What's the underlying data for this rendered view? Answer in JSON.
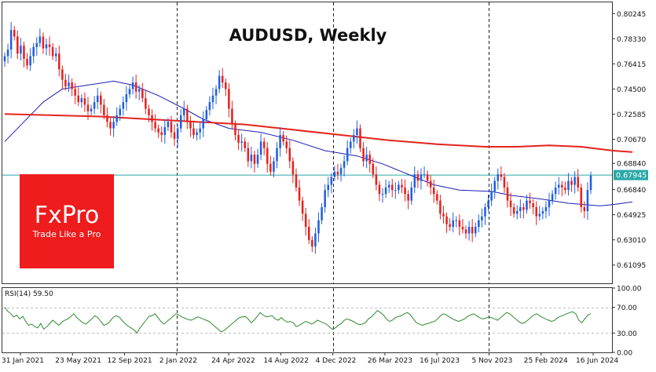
{
  "title": "AUDUSD, Weekly",
  "logo": {
    "name": "FxPro",
    "tagline": "Trade Like a Pro"
  },
  "colors": {
    "up": "#1f5fe0",
    "down": "#e8201c",
    "ma_short": "#1d1db8",
    "ma_long": "#e4231d",
    "rsi": "#2e8b2e",
    "last_price_line": "#2aa7a7",
    "last_price_label_bg": "#2aa7a7",
    "logo_bg": "#ee1c1c"
  },
  "chart_data": [
    {
      "type": "candlestick",
      "title": "AUDUSD, Weekly",
      "y_ticks": [
        "0.80245",
        "0.78330",
        "0.76415",
        "0.74500",
        "0.72585",
        "0.70670",
        "0.68840",
        "0.66840",
        "0.64925",
        "0.63010",
        "0.61095"
      ],
      "ylim": [
        0.597,
        0.811
      ],
      "last_price": "0.67945",
      "x_ticks": [
        "31 Jan 2021",
        "23 May 2021",
        "12 Sep 2021",
        "2 Jan 2022",
        "24 Apr 2022",
        "14 Aug 2022",
        "4 Dec 2022",
        "26 Mar 2023",
        "16 Jul 2023",
        "5 Nov 2023",
        "25 Feb 2024",
        "16 Jun 2024"
      ],
      "period_separators": [
        "2 Jan 2022",
        "4 Dec 2022",
        "5 Nov 2023"
      ],
      "closes": [
        0.77,
        0.775,
        0.79,
        0.785,
        0.772,
        0.778,
        0.768,
        0.763,
        0.77,
        0.777,
        0.78,
        0.785,
        0.776,
        0.779,
        0.777,
        0.77,
        0.772,
        0.76,
        0.752,
        0.747,
        0.75,
        0.745,
        0.74,
        0.735,
        0.738,
        0.733,
        0.728,
        0.73,
        0.735,
        0.74,
        0.733,
        0.725,
        0.72,
        0.715,
        0.72,
        0.725,
        0.73,
        0.735,
        0.741,
        0.745,
        0.75,
        0.743,
        0.745,
        0.738,
        0.73,
        0.725,
        0.72,
        0.715,
        0.712,
        0.71,
        0.716,
        0.72,
        0.712,
        0.707,
        0.715,
        0.725,
        0.73,
        0.72,
        0.715,
        0.71,
        0.712,
        0.715,
        0.722,
        0.729,
        0.735,
        0.74,
        0.745,
        0.755,
        0.75,
        0.745,
        0.73,
        0.718,
        0.71,
        0.704,
        0.705,
        0.7,
        0.69,
        0.695,
        0.688,
        0.695,
        0.705,
        0.7,
        0.688,
        0.682,
        0.69,
        0.7,
        0.71,
        0.705,
        0.7,
        0.69,
        0.68,
        0.67,
        0.66,
        0.65,
        0.64,
        0.63,
        0.625,
        0.635,
        0.645,
        0.655,
        0.668,
        0.672,
        0.678,
        0.682,
        0.68,
        0.685,
        0.69,
        0.7,
        0.705,
        0.71,
        0.715,
        0.7,
        0.69,
        0.695,
        0.688,
        0.68,
        0.672,
        0.665,
        0.665,
        0.67,
        0.672,
        0.668,
        0.668,
        0.672,
        0.67,
        0.665,
        0.66,
        0.67,
        0.68,
        0.675,
        0.68,
        0.68,
        0.675,
        0.67,
        0.665,
        0.66,
        0.65,
        0.648,
        0.642,
        0.64,
        0.645,
        0.645,
        0.64,
        0.638,
        0.635,
        0.64,
        0.635,
        0.64,
        0.645,
        0.648,
        0.655,
        0.66,
        0.667,
        0.675,
        0.68,
        0.678,
        0.67,
        0.66,
        0.655,
        0.65,
        0.652,
        0.655,
        0.653,
        0.66,
        0.658,
        0.655,
        0.648,
        0.65,
        0.652,
        0.655,
        0.66,
        0.665,
        0.67,
        0.672,
        0.67,
        0.668,
        0.675,
        0.672,
        0.678,
        0.67,
        0.655,
        0.652,
        0.668,
        0.679
      ],
      "series": [
        {
          "name": "",
          "kind": "ma_short",
          "points": [
            [
              0,
              0.705
            ],
            [
              6,
              0.72
            ],
            [
              12,
              0.735
            ],
            [
              18,
              0.745
            ],
            [
              26,
              0.748
            ],
            [
              34,
              0.751
            ],
            [
              40,
              0.748
            ],
            [
              48,
              0.74
            ],
            [
              56,
              0.73
            ],
            [
              62,
              0.722
            ],
            [
              70,
              0.715
            ],
            [
              80,
              0.712
            ],
            [
              90,
              0.706
            ],
            [
              100,
              0.698
            ],
            [
              110,
              0.694
            ],
            [
              118,
              0.688
            ],
            [
              126,
              0.68
            ],
            [
              134,
              0.672
            ],
            [
              142,
              0.668
            ],
            [
              152,
              0.667
            ],
            [
              158,
              0.664
            ],
            [
              168,
              0.661
            ],
            [
              176,
              0.658
            ],
            [
              186,
              0.656
            ],
            [
              190,
              0.657
            ],
            [
              196,
              0.659
            ]
          ]
        },
        {
          "name": "",
          "kind": "ma_long",
          "points": [
            [
              0,
              0.726
            ],
            [
              15,
              0.725
            ],
            [
              30,
              0.724
            ],
            [
              45,
              0.722
            ],
            [
              60,
              0.72
            ],
            [
              75,
              0.718
            ],
            [
              90,
              0.714
            ],
            [
              105,
              0.71
            ],
            [
              120,
              0.706
            ],
            [
              135,
              0.703
            ],
            [
              150,
              0.701
            ],
            [
              160,
              0.701
            ],
            [
              170,
              0.702
            ],
            [
              180,
              0.701
            ],
            [
              190,
              0.698
            ],
            [
              196,
              0.697
            ]
          ]
        }
      ]
    },
    {
      "type": "line",
      "label": "RSI(14) 59.50",
      "y_ticks": [
        "100.00",
        "70.00",
        "30.00",
        "0.00"
      ],
      "ylim": [
        0,
        100
      ],
      "levels": [
        70,
        30
      ],
      "values": [
        70,
        64,
        60,
        55,
        58,
        52,
        56,
        48,
        42,
        44,
        40,
        38,
        45,
        36,
        40,
        45,
        50,
        46,
        42,
        47,
        50,
        52,
        56,
        60,
        54,
        50,
        46,
        44,
        48,
        52,
        57,
        54,
        48,
        42,
        44,
        48,
        54,
        57,
        55,
        50,
        45,
        41,
        38,
        35,
        30,
        38,
        44,
        50,
        56,
        57,
        60,
        54,
        48,
        44,
        48,
        52,
        56,
        60,
        58,
        55,
        53,
        51,
        50,
        52,
        55,
        54,
        52,
        50,
        48,
        44,
        40,
        36,
        32,
        34,
        38,
        42,
        46,
        50,
        54,
        55,
        56,
        52,
        46,
        50,
        56,
        62,
        58,
        55,
        56,
        57,
        52,
        50,
        54,
        50,
        47,
        48,
        46,
        40,
        42,
        45,
        48,
        47,
        44,
        46,
        50,
        48,
        46,
        44,
        40,
        36,
        38,
        42,
        45,
        50,
        52,
        50,
        48,
        45,
        43,
        44,
        46,
        52,
        55,
        60,
        65,
        62,
        58,
        52,
        48,
        50,
        54,
        56,
        57,
        60,
        62,
        58,
        52,
        46,
        44,
        42,
        44,
        45,
        47,
        48,
        52,
        57,
        60,
        58,
        55,
        52,
        50,
        48,
        50,
        52,
        56,
        58,
        60,
        57,
        54,
        52,
        53,
        55,
        54,
        52,
        50,
        54,
        58,
        62,
        60,
        56,
        52,
        48,
        45,
        46,
        50,
        54,
        58,
        60,
        57,
        54,
        52,
        50,
        48,
        50,
        54,
        56,
        58,
        60,
        62,
        63,
        60,
        50,
        46,
        52,
        58,
        60
      ]
    }
  ]
}
